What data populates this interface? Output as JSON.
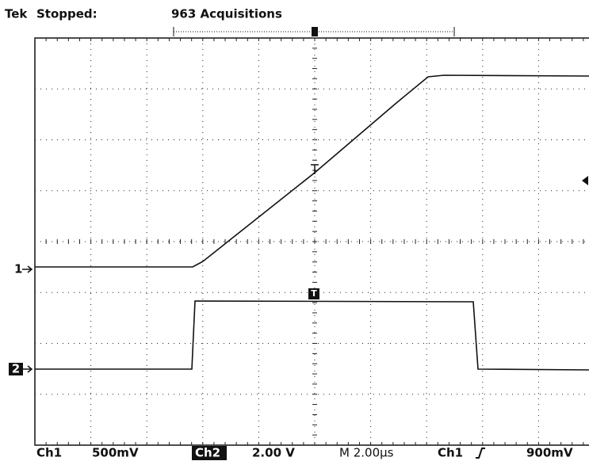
{
  "header": {
    "brand": "Tek",
    "status": "Stopped:",
    "acquisitions": "963 Acquisitions"
  },
  "markers": {
    "ch1": "1",
    "ch2": "2"
  },
  "footer": {
    "ch1": "Ch1",
    "ch1_scale": "500mV",
    "ch2": "Ch2",
    "ch2_scale": "2.00 V",
    "timebase": "M 2.00µs",
    "trigger_source": "Ch1",
    "trigger_level": "900mV"
  }
}
